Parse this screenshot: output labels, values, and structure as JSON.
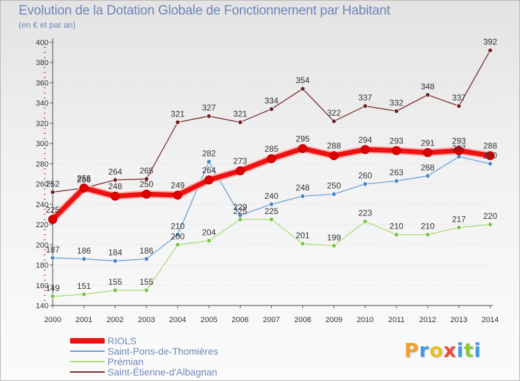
{
  "title": "Evolution de la Dotation Globale de Fonctionnement par Habitant",
  "subtitle": "(en € et par an)",
  "logo": {
    "letters": [
      "P",
      "r",
      "o",
      "x",
      "i",
      "t",
      "i"
    ],
    "colors": [
      "#f0a02a",
      "#3f9ae0",
      "#e8c020",
      "#e84a3a",
      "#3f9ae0",
      "#8cc83c",
      "#3f9ae0"
    ]
  },
  "chart_data": {
    "type": "line",
    "x": [
      "2000",
      "2001",
      "2002",
      "2003",
      "2004",
      "2005",
      "2006",
      "2007",
      "2008",
      "2009",
      "2010",
      "2011",
      "2012",
      "2013",
      "2014"
    ],
    "ylim": [
      140,
      400
    ],
    "yticks": [
      140,
      160,
      180,
      200,
      220,
      240,
      260,
      280,
      300,
      320,
      340,
      360,
      380,
      400
    ],
    "grid": "horizontal",
    "legend_position": "bottom-left",
    "series": [
      {
        "name": "Saint-Étienne-d'Albagnan",
        "color": "#7a2a2a",
        "marker": "#6e1f1f",
        "emphasis": false,
        "values": [
          252,
          256,
          264,
          265,
          321,
          327,
          321,
          334,
          354,
          322,
          337,
          332,
          348,
          337,
          392
        ],
        "labels": [
          "252",
          "256",
          "264",
          "265",
          "321",
          "327",
          "321",
          "334",
          "354",
          "322",
          "337",
          "332",
          "348",
          "337",
          "392"
        ]
      },
      {
        "name": "Saint-Pons-de-Thomières",
        "color": "#6a9fd2",
        "marker": "#4a86c8",
        "emphasis": false,
        "values": [
          187,
          186,
          184,
          186,
          210,
          282,
          229,
          240,
          248,
          250,
          260,
          263,
          268,
          287,
          280
        ],
        "labels": [
          "187",
          "186",
          "184",
          "186",
          "210",
          "282",
          "229",
          "240",
          "248",
          "250",
          "260",
          "263",
          "268",
          "287",
          "280"
        ]
      },
      {
        "name": "Prémian",
        "color": "#a8dc78",
        "marker": "#7cc444",
        "emphasis": false,
        "values": [
          149,
          151,
          155,
          155,
          200,
          204,
          225,
          225,
          201,
          199,
          223,
          210,
          210,
          217,
          220
        ],
        "labels": [
          "149",
          "151",
          "155",
          "155",
          "200",
          "204",
          "225",
          "225",
          "201",
          "199",
          "223",
          "210",
          "210",
          "217",
          "220"
        ]
      },
      {
        "name": "RIOLS",
        "color": "#ee1111",
        "marker": "#e00000",
        "emphasis": true,
        "values": [
          225,
          256,
          248,
          250,
          249,
          264,
          273,
          285,
          295,
          288,
          294,
          293,
          291,
          293,
          288
        ],
        "labels": [
          "225",
          "256",
          "248",
          "250",
          "249",
          "264",
          "273",
          "285",
          "295",
          "288",
          "294",
          "293",
          "291",
          "293",
          "288"
        ]
      }
    ]
  },
  "legend": {
    "items": [
      {
        "label": "RIOLS",
        "color": "#ee1111",
        "thickness": 8
      },
      {
        "label": "Saint-Pons-de-Thomières",
        "color": "#6a9fd2",
        "thickness": 2
      },
      {
        "label": "Prémian",
        "color": "#a8dc78",
        "thickness": 2
      },
      {
        "label": "Saint-Étienne-d'Albagnan",
        "color": "#7a2a2a",
        "thickness": 2
      }
    ]
  }
}
